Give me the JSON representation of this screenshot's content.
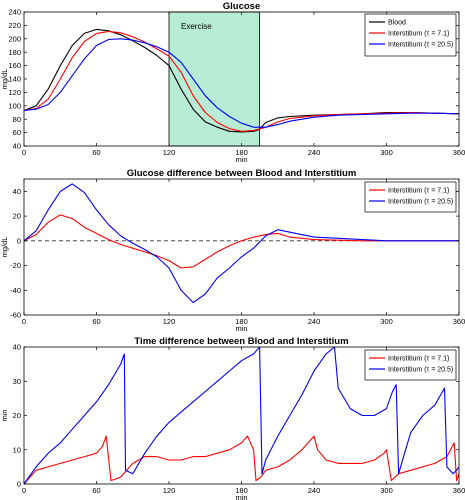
{
  "chart_data": [
    {
      "type": "line",
      "title": "Glucose",
      "xlabel": "min",
      "ylabel": "mg/dL",
      "xlim": [
        0,
        360
      ],
      "ylim": [
        40,
        240
      ],
      "xticks": [
        0,
        60,
        120,
        180,
        240,
        300,
        360
      ],
      "yticks": [
        40,
        60,
        80,
        100,
        120,
        140,
        160,
        180,
        200,
        220,
        240
      ],
      "grid": false,
      "legend_position": "top-right",
      "annotation": {
        "label": "Exercise",
        "x_range": [
          120,
          195
        ],
        "color": "#b8ecd4"
      },
      "series": [
        {
          "name": "Blood",
          "color": "#000000",
          "x": [
            0,
            10,
            20,
            30,
            40,
            50,
            60,
            70,
            80,
            90,
            100,
            110,
            120,
            130,
            140,
            150,
            160,
            170,
            180,
            190,
            195,
            200,
            210,
            220,
            240,
            260,
            280,
            300,
            320,
            340,
            360
          ],
          "y": [
            93,
            100,
            125,
            160,
            190,
            208,
            214,
            212,
            206,
            197,
            187,
            175,
            160,
            125,
            95,
            76,
            68,
            62,
            61,
            62,
            65,
            75,
            82,
            84,
            86,
            87,
            88,
            90,
            90,
            89,
            88
          ]
        },
        {
          "name": "Interstitium (τ = 7.1)",
          "color": "#ff0000",
          "x": [
            0,
            10,
            20,
            30,
            40,
            50,
            60,
            70,
            80,
            90,
            100,
            110,
            120,
            130,
            140,
            150,
            160,
            170,
            180,
            190,
            200,
            210,
            220,
            240,
            260,
            280,
            300,
            320,
            340,
            360
          ],
          "y": [
            93,
            96,
            110,
            140,
            172,
            196,
            208,
            211,
            209,
            203,
            195,
            185,
            174,
            150,
            115,
            90,
            75,
            66,
            62,
            63,
            68,
            76,
            81,
            85,
            87,
            88,
            89,
            90,
            89,
            88
          ]
        },
        {
          "name": "Interstitium (τ = 20.5)",
          "color": "#0000ff",
          "x": [
            0,
            10,
            20,
            30,
            40,
            50,
            60,
            70,
            80,
            90,
            100,
            110,
            120,
            130,
            140,
            150,
            160,
            170,
            180,
            190,
            200,
            210,
            220,
            240,
            260,
            280,
            300,
            320,
            340,
            360
          ],
          "y": [
            93,
            95,
            102,
            120,
            145,
            170,
            190,
            199,
            200,
            198,
            194,
            188,
            180,
            165,
            140,
            115,
            97,
            84,
            74,
            68,
            68,
            72,
            77,
            83,
            86,
            87,
            88,
            89,
            89,
            88
          ]
        }
      ]
    },
    {
      "type": "line",
      "title": "Glucose difference between Blood and Interstitium",
      "xlabel": "min",
      "ylabel": "mg/dL",
      "xlim": [
        0,
        360
      ],
      "ylim": [
        -60,
        50
      ],
      "xticks": [
        0,
        60,
        120,
        180,
        240,
        300,
        360
      ],
      "yticks": [
        -60,
        -40,
        -20,
        0,
        20,
        40
      ],
      "grid": false,
      "legend_position": "top-right",
      "series": [
        {
          "name": "Interstitium (τ = 7.1)",
          "color": "#ff0000",
          "x": [
            0,
            10,
            20,
            30,
            40,
            50,
            60,
            70,
            80,
            90,
            100,
            110,
            120,
            130,
            140,
            150,
            160,
            170,
            180,
            190,
            200,
            210,
            220,
            240,
            260,
            280,
            300,
            320,
            340,
            360
          ],
          "y": [
            0,
            5,
            15,
            21,
            18,
            11,
            6,
            1,
            -3,
            -6,
            -9,
            -12,
            -16,
            -22,
            -21,
            -15,
            -9,
            -4,
            0,
            3,
            5,
            6,
            3,
            1,
            0.5,
            0,
            0,
            0,
            0,
            0
          ]
        },
        {
          "name": "Interstitium (τ = 20.5)",
          "color": "#0000ff",
          "x": [
            0,
            10,
            20,
            30,
            40,
            50,
            60,
            70,
            80,
            90,
            100,
            110,
            120,
            130,
            140,
            150,
            160,
            170,
            180,
            190,
            200,
            210,
            220,
            240,
            260,
            280,
            300,
            320,
            340,
            360
          ],
          "y": [
            0,
            8,
            25,
            40,
            46,
            39,
            25,
            13,
            4,
            -2,
            -7,
            -13,
            -22,
            -40,
            -50,
            -43,
            -30,
            -22,
            -13,
            -6,
            4,
            9,
            7,
            3,
            2,
            1,
            0,
            0,
            0,
            0
          ]
        }
      ]
    },
    {
      "type": "line",
      "title": "Time difference between Blood and Interstitium",
      "xlabel": "min",
      "ylabel": "min",
      "xlim": [
        0,
        360
      ],
      "ylim": [
        0,
        40
      ],
      "xticks": [
        0,
        60,
        120,
        180,
        240,
        300,
        360
      ],
      "yticks": [
        0,
        10,
        20,
        30,
        40
      ],
      "grid": false,
      "legend_position": "top-right",
      "series": [
        {
          "name": "Interstitium (τ = 7.1)",
          "color": "#ff0000",
          "x": [
            0,
            10,
            20,
            30,
            40,
            50,
            60,
            65,
            68,
            72,
            80,
            90,
            100,
            110,
            120,
            130,
            140,
            150,
            160,
            170,
            180,
            185,
            190,
            192,
            196,
            200,
            210,
            220,
            230,
            235,
            240,
            243,
            250,
            260,
            280,
            290,
            298,
            300,
            304,
            310,
            320,
            340,
            350,
            356,
            358,
            360
          ],
          "y": [
            0,
            4,
            5,
            6,
            7,
            8,
            9,
            11,
            14,
            1,
            2,
            6,
            8,
            8,
            7,
            7,
            8,
            8,
            9,
            10,
            12,
            14,
            10,
            1,
            2,
            4,
            5,
            7,
            10,
            12,
            14,
            10,
            7,
            6,
            6,
            7,
            9,
            10,
            1,
            3,
            4,
            6,
            8,
            12,
            1,
            3
          ]
        },
        {
          "name": "Interstitium (τ = 20.5)",
          "color": "#0000ff",
          "x": [
            0,
            10,
            20,
            30,
            40,
            50,
            60,
            70,
            80,
            83,
            84,
            90,
            100,
            110,
            120,
            130,
            140,
            150,
            160,
            170,
            180,
            190,
            195,
            197,
            200,
            210,
            220,
            230,
            240,
            250,
            257,
            260,
            270,
            280,
            290,
            300,
            305,
            308,
            310,
            315,
            320,
            330,
            340,
            348,
            350,
            355,
            358,
            360
          ],
          "y": [
            0,
            5,
            9,
            12,
            16,
            20,
            24,
            29,
            35,
            38,
            4,
            3,
            9,
            14,
            18,
            21,
            24,
            27,
            30,
            33,
            36,
            38,
            40,
            3,
            7,
            14,
            20,
            26,
            33,
            38,
            40,
            28,
            22,
            20,
            20,
            22,
            27,
            29,
            3,
            9,
            15,
            20,
            23,
            28,
            5,
            3,
            4,
            5
          ]
        }
      ]
    }
  ]
}
